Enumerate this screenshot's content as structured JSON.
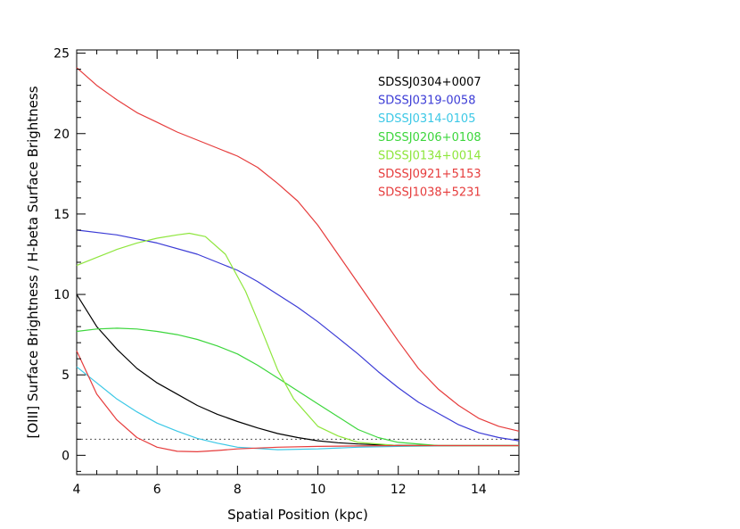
{
  "chart_data": {
    "type": "line",
    "title": "",
    "xlabel": "Spatial Position (kpc)",
    "ylabel": "[OIII] Surface Brightness / H-beta Surface Brightness",
    "xlim": [
      4,
      15
    ],
    "ylim": [
      -1.2,
      25.2
    ],
    "xticks": [
      4,
      6,
      8,
      10,
      12,
      14
    ],
    "xtick_labels": [
      "4",
      "6",
      "8",
      "10",
      "12",
      "14"
    ],
    "yticks": [
      0,
      5,
      10,
      15,
      20,
      25
    ],
    "ytick_labels": [
      "0",
      "5",
      "10",
      "15",
      "20",
      "25"
    ],
    "grid": false,
    "legend_position": "top-right",
    "reference_line": {
      "y": 1,
      "style": "dotted",
      "color": "#555555"
    },
    "series": [
      {
        "name": "SDSSJ0304+0007",
        "color": "#000000",
        "x": [
          4,
          4.5,
          5,
          5.5,
          6,
          6.5,
          7,
          7.5,
          8,
          8.5,
          9,
          9.5,
          10,
          10.5,
          11,
          11.5,
          12,
          13,
          14,
          15
        ],
        "y": [
          10.0,
          8.0,
          6.6,
          5.4,
          4.5,
          3.8,
          3.1,
          2.55,
          2.1,
          1.7,
          1.35,
          1.1,
          0.9,
          0.78,
          0.7,
          0.65,
          0.62,
          0.6,
          0.6,
          0.6
        ]
      },
      {
        "name": "SDSSJ0319-0058",
        "color": "#3c3cd6",
        "x": [
          4,
          5,
          6,
          7,
          7.5,
          8,
          8.5,
          9,
          9.5,
          10,
          10.5,
          11,
          11.5,
          12,
          12.5,
          13,
          13.5,
          14,
          14.5,
          15
        ],
        "y": [
          14.0,
          13.7,
          13.2,
          12.5,
          12.0,
          11.5,
          10.8,
          10.0,
          9.2,
          8.3,
          7.3,
          6.3,
          5.2,
          4.2,
          3.3,
          2.6,
          1.9,
          1.4,
          1.1,
          0.9
        ]
      },
      {
        "name": "SDSSJ0314-0105",
        "color": "#3cc8e6",
        "x": [
          4,
          4.5,
          5,
          5.5,
          6,
          6.5,
          7,
          7.5,
          8,
          9,
          10,
          11,
          12,
          13,
          14,
          15
        ],
        "y": [
          5.5,
          4.5,
          3.5,
          2.7,
          2.0,
          1.5,
          1.05,
          0.75,
          0.5,
          0.35,
          0.4,
          0.5,
          0.55,
          0.58,
          0.6,
          0.6
        ]
      },
      {
        "name": "SDSSJ0206+0108",
        "color": "#3cd63c",
        "x": [
          4,
          4.5,
          5,
          5.5,
          6,
          6.5,
          7,
          7.5,
          8,
          8.5,
          9,
          9.5,
          10,
          10.5,
          11,
          11.5,
          12,
          13,
          14,
          15
        ],
        "y": [
          7.7,
          7.85,
          7.9,
          7.85,
          7.7,
          7.5,
          7.2,
          6.8,
          6.3,
          5.6,
          4.8,
          4.0,
          3.2,
          2.4,
          1.6,
          1.1,
          0.8,
          0.6,
          0.6,
          0.6
        ]
      },
      {
        "name": "SDSSJ0134+0014",
        "color": "#8ee63c",
        "x": [
          4,
          4.5,
          5,
          5.5,
          6,
          6.5,
          6.8,
          7.2,
          7.7,
          8.2,
          8.6,
          9,
          9.4,
          10,
          10.5,
          11,
          12,
          13,
          14,
          15
        ],
        "y": [
          11.8,
          12.3,
          12.8,
          13.2,
          13.5,
          13.7,
          13.8,
          13.6,
          12.5,
          10.2,
          7.8,
          5.3,
          3.5,
          1.8,
          1.2,
          0.8,
          0.6,
          0.6,
          0.6,
          0.6
        ]
      },
      {
        "name": "SDSSJ0921+5153",
        "color": "#e63c3c",
        "x": [
          4,
          4.5,
          5,
          5.5,
          6,
          6.5,
          7,
          7.5,
          8,
          9,
          10,
          11,
          12,
          13,
          14,
          15
        ],
        "y": [
          6.5,
          3.8,
          2.2,
          1.1,
          0.5,
          0.25,
          0.22,
          0.3,
          0.4,
          0.5,
          0.55,
          0.58,
          0.6,
          0.6,
          0.6,
          0.6
        ]
      },
      {
        "name": "SDSSJ1038+5231",
        "color": "#e63c3c",
        "x": [
          4,
          4.5,
          5,
          5.5,
          6,
          6.5,
          7,
          7.5,
          8,
          8.5,
          9,
          9.5,
          10,
          10.5,
          11,
          11.5,
          12,
          12.5,
          13,
          13.5,
          14,
          14.5,
          15
        ],
        "y": [
          24.1,
          23.0,
          22.1,
          21.3,
          20.7,
          20.1,
          19.6,
          19.1,
          18.6,
          17.9,
          16.9,
          15.8,
          14.3,
          12.5,
          10.7,
          8.9,
          7.1,
          5.4,
          4.1,
          3.1,
          2.3,
          1.8,
          1.5
        ]
      }
    ]
  }
}
